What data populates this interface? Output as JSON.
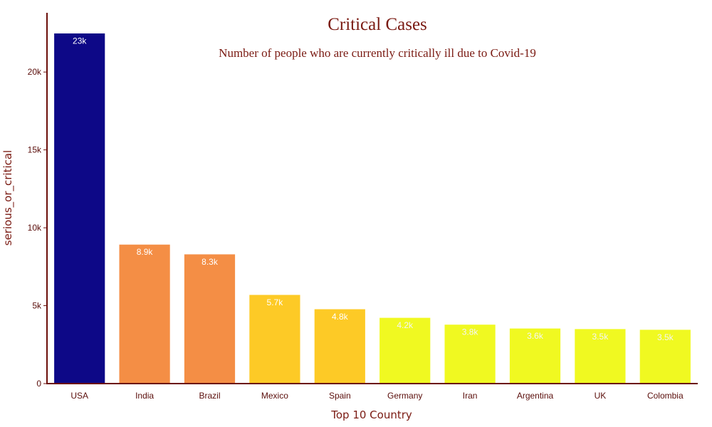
{
  "chart_data": {
    "type": "bar",
    "title": "Critical Cases",
    "subtitle": "Number of people who are currently critically ill due to Covid-19",
    "xlabel": "Top 10 Country",
    "ylabel": "serious_or_critical",
    "categories": [
      "USA",
      "India",
      "Brazil",
      "Mexico",
      "Spain",
      "Germany",
      "Iran",
      "Argentina",
      "UK",
      "Colombia"
    ],
    "values": [
      22500,
      8944,
      8318,
      5713,
      4798,
      4242,
      3806,
      3557,
      3520,
      3478
    ],
    "data_labels": [
      "23k",
      "8.9k",
      "8.3k",
      "5.7k",
      "4.8k",
      "4.2k",
      "3.8k",
      "3.6k",
      "3.5k",
      "3.5k"
    ],
    "bar_colors": [
      "#0d0887",
      "#f48e45",
      "#f48e45",
      "#fdca26",
      "#fdca26",
      "#f0f921",
      "#f0f921",
      "#f0f921",
      "#f0f921",
      "#f0f921"
    ],
    "label_colors": [
      "#ffffff",
      "#ffffff",
      "#ffffff",
      "#ffffff",
      "#ffffff",
      "#f5f5f5",
      "#f5f5f5",
      "#f5f5f5",
      "#f5f5f5",
      "#f5f5f5"
    ],
    "yticks": [
      0,
      5000,
      10000,
      15000,
      20000
    ],
    "ytick_labels": [
      "0",
      "5k",
      "10k",
      "15k",
      "20k"
    ],
    "ylim": [
      0,
      23800
    ],
    "grid": false,
    "legend": "none",
    "axis_color": "#6b0f0a"
  }
}
